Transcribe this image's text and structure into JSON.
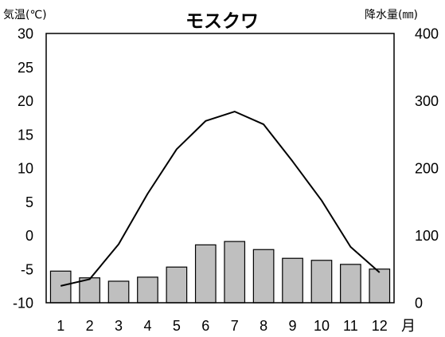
{
  "chart_data": {
    "type": "bar+line",
    "title": "モスクワ",
    "categories": [
      "1",
      "2",
      "3",
      "4",
      "5",
      "6",
      "7",
      "8",
      "9",
      "10",
      "11",
      "12"
    ],
    "x_unit_label": "月",
    "y_left_label": "気温(℃)",
    "y_right_label": "降水量(㎜)",
    "y_left_lim": [
      -10,
      30
    ],
    "y_left_ticks": [
      "30",
      "25",
      "20",
      "15",
      "10",
      "5",
      "0",
      "-5",
      "-10"
    ],
    "y_right_lim": [
      0,
      400
    ],
    "y_right_ticks": [
      "400",
      "300",
      "200",
      "100",
      "0"
    ],
    "grid": false,
    "series": [
      {
        "kind": "bar",
        "axis": "right",
        "values": [
          47,
          37,
          32,
          38,
          53,
          86,
          91,
          79,
          66,
          63,
          57,
          50
        ],
        "color": "#bfbfbf",
        "edge_color": "#000000"
      },
      {
        "kind": "line",
        "axis": "left",
        "values": [
          -7.5,
          -6.5,
          -1.3,
          6.2,
          12.8,
          17.0,
          18.4,
          16.5,
          11.0,
          5.2,
          -1.7,
          -5.5
        ],
        "color": "#000000"
      }
    ]
  }
}
